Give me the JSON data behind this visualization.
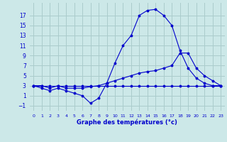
{
  "xlabel": "Graphe des températures (°c)",
  "bg_color": "#cce8e8",
  "grid_color": "#aacccc",
  "line_color": "#0000cc",
  "x": [
    0,
    1,
    2,
    3,
    4,
    5,
    6,
    7,
    8,
    9,
    10,
    11,
    12,
    13,
    14,
    15,
    16,
    17,
    18,
    19,
    20,
    21,
    22,
    23
  ],
  "line1": [
    3,
    2.5,
    2,
    2.5,
    2,
    1.5,
    1,
    -0.5,
    0.5,
    3.5,
    7.5,
    11,
    13,
    17,
    18,
    18.2,
    17,
    15,
    10,
    6.5,
    4.5,
    3.5,
    3,
    3
  ],
  "line2": [
    3,
    3,
    2.5,
    3,
    2.5,
    2.5,
    2.5,
    2.8,
    3,
    3.5,
    4,
    4.5,
    5,
    5.5,
    5.8,
    6.0,
    6.5,
    7.0,
    9.5,
    9.5,
    6.5,
    5,
    4,
    3
  ],
  "line3": [
    3,
    3,
    3,
    3,
    3,
    3,
    3,
    3,
    3,
    3,
    3,
    3,
    3,
    3,
    3,
    3,
    3,
    3,
    3,
    3,
    3,
    3,
    3,
    3
  ],
  "yticks": [
    -1,
    1,
    3,
    5,
    7,
    9,
    11,
    13,
    15,
    17
  ],
  "xticks": [
    0,
    1,
    2,
    3,
    4,
    5,
    6,
    7,
    8,
    9,
    10,
    11,
    12,
    13,
    14,
    15,
    16,
    17,
    18,
    19,
    20,
    21,
    22,
    23
  ],
  "ylim": [
    -2,
    19.5
  ],
  "xlim": [
    -0.5,
    23.5
  ]
}
